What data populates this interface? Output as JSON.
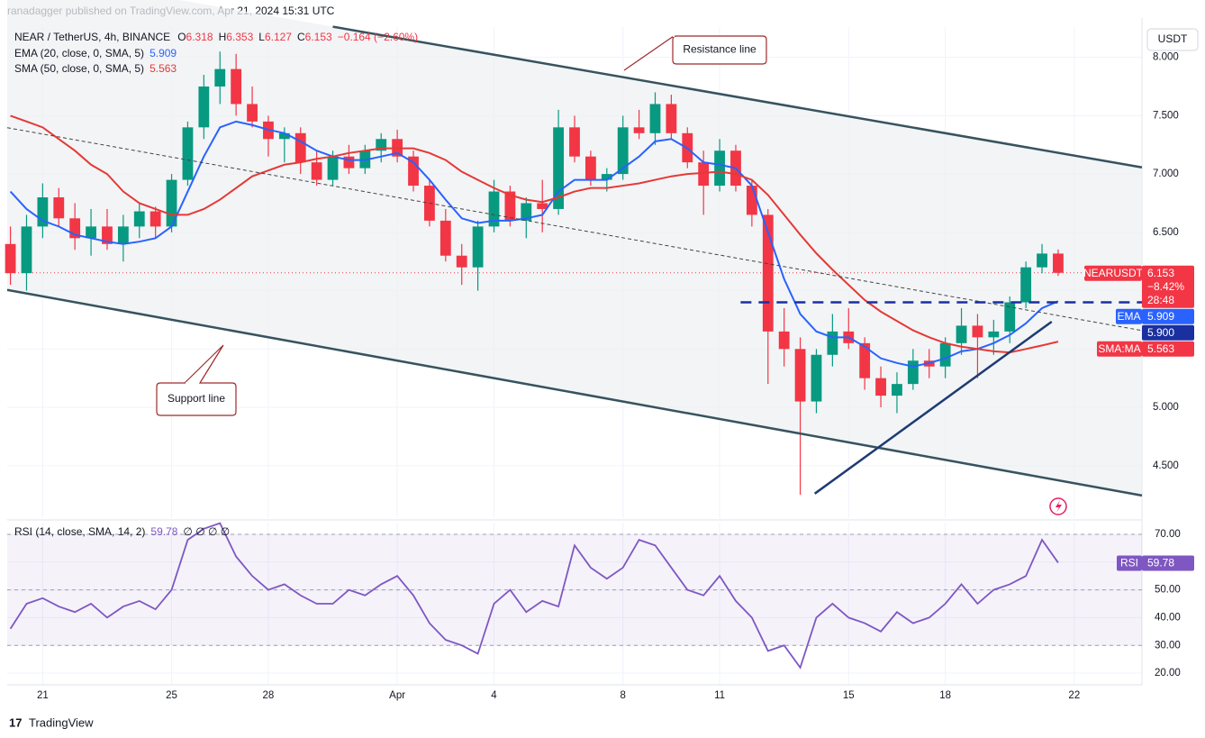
{
  "page": {
    "publisher": "ranadagger published on TradingView.com, Apr 21, 2024 15:31 UTC",
    "footer": "TradingView",
    "currency": "USDT"
  },
  "chart_data": [
    {
      "type": "candlestick",
      "symbol": "NEAR / TetherUS, 4h, BINANCE",
      "ohlc": [
        {
          "label": "O",
          "value": "6.318"
        },
        {
          "label": "H",
          "value": "6.353"
        },
        {
          "label": "L",
          "value": "6.127"
        },
        {
          "label": "C",
          "value": "6.153"
        }
      ],
      "change": "−0.164 (−2.60%)",
      "up_color": "#089981",
      "down_color": "#f23645",
      "open": [
        6.4,
        6.15,
        6.55,
        6.8,
        6.62,
        6.45,
        6.55,
        6.4,
        6.55,
        6.68,
        6.55,
        6.95,
        7.4,
        7.75,
        7.9,
        7.6,
        7.45,
        7.3,
        7.35,
        7.1,
        6.95,
        7.15,
        7.05,
        7.2,
        7.3,
        7.15,
        6.9,
        6.6,
        6.3,
        6.2,
        6.55,
        6.85,
        6.6,
        6.75,
        6.7,
        7.4,
        7.15,
        6.95,
        7.0,
        7.4,
        7.35,
        7.6,
        7.35,
        7.1,
        6.9,
        7.2,
        6.9,
        6.65,
        5.65,
        5.5,
        5.05,
        5.45,
        5.65,
        5.55,
        5.25,
        5.1,
        5.2,
        5.4,
        5.35,
        5.55,
        5.7,
        5.6,
        5.65,
        5.9,
        6.2,
        6.318
      ],
      "high": [
        6.55,
        6.65,
        6.92,
        6.88,
        6.75,
        6.7,
        6.7,
        6.65,
        6.75,
        6.72,
        7.0,
        7.45,
        7.85,
        8.05,
        8.03,
        7.75,
        7.5,
        7.4,
        7.4,
        7.2,
        7.2,
        7.25,
        7.25,
        7.35,
        7.38,
        7.2,
        6.95,
        6.7,
        6.4,
        6.6,
        6.95,
        6.9,
        6.8,
        6.95,
        7.55,
        7.5,
        7.2,
        7.05,
        7.5,
        7.55,
        7.7,
        7.68,
        7.4,
        7.2,
        7.3,
        7.25,
        6.95,
        6.7,
        5.85,
        5.6,
        5.5,
        5.8,
        5.85,
        5.6,
        5.35,
        5.3,
        5.5,
        5.5,
        5.6,
        5.85,
        5.8,
        5.75,
        5.95,
        6.25,
        6.4,
        6.353
      ],
      "low": [
        6.05,
        6.0,
        6.45,
        6.55,
        6.35,
        6.3,
        6.35,
        6.25,
        6.45,
        6.45,
        6.5,
        6.9,
        7.3,
        7.6,
        7.5,
        7.4,
        7.15,
        7.1,
        7.0,
        6.9,
        6.9,
        7.0,
        7.0,
        7.1,
        7.1,
        6.85,
        6.55,
        6.25,
        6.05,
        6.0,
        6.5,
        6.55,
        6.45,
        6.5,
        6.65,
        7.1,
        6.9,
        6.85,
        6.95,
        7.3,
        7.25,
        7.3,
        7.05,
        6.65,
        6.85,
        6.85,
        6.55,
        5.2,
        5.35,
        4.25,
        4.95,
        5.35,
        5.5,
        5.15,
        5.0,
        4.95,
        5.15,
        5.25,
        5.25,
        5.45,
        5.25,
        5.45,
        5.55,
        5.85,
        6.15,
        6.127
      ],
      "close": [
        6.15,
        6.55,
        6.8,
        6.62,
        6.45,
        6.55,
        6.4,
        6.55,
        6.68,
        6.55,
        6.95,
        7.4,
        7.75,
        7.9,
        7.6,
        7.45,
        7.3,
        7.35,
        7.1,
        6.95,
        7.15,
        7.05,
        7.2,
        7.3,
        7.15,
        6.9,
        6.6,
        6.3,
        6.2,
        6.55,
        6.85,
        6.6,
        6.75,
        6.7,
        7.4,
        7.15,
        6.95,
        7.0,
        7.4,
        7.35,
        7.6,
        7.35,
        7.1,
        6.9,
        7.2,
        6.9,
        6.65,
        5.65,
        5.5,
        5.05,
        5.45,
        5.65,
        5.55,
        5.25,
        5.1,
        5.2,
        5.4,
        5.35,
        5.55,
        5.7,
        5.6,
        5.65,
        5.9,
        6.2,
        6.318,
        6.153
      ],
      "series": [
        {
          "name": "EMA (20, close, 0, SMA, 5)",
          "color": "#2962ff",
          "values": [
            6.85,
            6.7,
            6.6,
            6.55,
            6.48,
            6.45,
            6.42,
            6.4,
            6.42,
            6.45,
            6.55,
            6.85,
            7.15,
            7.4,
            7.45,
            7.42,
            7.38,
            7.35,
            7.28,
            7.2,
            7.15,
            7.12,
            7.12,
            7.15,
            7.18,
            7.1,
            6.95,
            6.78,
            6.62,
            6.58,
            6.6,
            6.6,
            6.62,
            6.65,
            6.85,
            6.95,
            6.95,
            6.95,
            7.05,
            7.15,
            7.28,
            7.3,
            7.22,
            7.1,
            7.08,
            7.05,
            6.9,
            6.5,
            6.1,
            5.8,
            5.65,
            5.6,
            5.6,
            5.52,
            5.42,
            5.38,
            5.35,
            5.38,
            5.42,
            5.48,
            5.5,
            5.55,
            5.62,
            5.72,
            5.85,
            5.909
          ]
        },
        {
          "name": "SMA (50, close, 0, SMA, 5)",
          "color": "#e53935",
          "values": [
            7.5,
            7.45,
            7.4,
            7.3,
            7.2,
            7.08,
            7.0,
            6.85,
            6.75,
            6.7,
            6.65,
            6.65,
            6.7,
            6.78,
            6.88,
            6.98,
            7.03,
            7.08,
            7.1,
            7.13,
            7.15,
            7.18,
            7.2,
            7.22,
            7.22,
            7.22,
            7.18,
            7.12,
            7.02,
            6.95,
            6.88,
            6.82,
            6.78,
            6.76,
            6.8,
            6.85,
            6.88,
            6.88,
            6.9,
            6.92,
            6.95,
            6.98,
            7.0,
            7.01,
            7.02,
            7.0,
            6.95,
            6.82,
            6.65,
            6.48,
            6.32,
            6.18,
            6.05,
            5.92,
            5.82,
            5.74,
            5.66,
            5.6,
            5.55,
            5.52,
            5.5,
            5.48,
            5.47,
            5.5,
            5.53,
            5.563
          ]
        }
      ],
      "xlim": [
        -0.2,
        70.2
      ],
      "xticks": [
        {
          "value": 2,
          "label": "21"
        },
        {
          "value": 10,
          "label": "25"
        },
        {
          "value": 16,
          "label": "28"
        },
        {
          "value": 24,
          "label": "Apr"
        },
        {
          "value": 30,
          "label": "4"
        },
        {
          "value": 38,
          "label": "8"
        },
        {
          "value": 44,
          "label": "11"
        },
        {
          "value": 52,
          "label": "15"
        },
        {
          "value": 58,
          "label": "18"
        },
        {
          "value": 66,
          "label": "22"
        }
      ],
      "ylim": [
        4.05,
        8.26
      ],
      "yticks": [
        {
          "value": 4.5,
          "label": "4.500"
        },
        {
          "value": 5,
          "label": "5.000"
        },
        {
          "value": 5.5,
          "label": "5.500"
        },
        {
          "value": 6,
          "label": "6.000"
        },
        {
          "value": 6.5,
          "label": "6.500"
        },
        {
          "value": 7,
          "label": "7.000"
        },
        {
          "value": 7.5,
          "label": "7.500"
        },
        {
          "value": 8,
          "label": "8.000"
        }
      ],
      "grid": true,
      "lines": [
        {
          "x1": 20.0,
          "y1": 8.263,
          "x2": 70.2,
          "y2": 7.057,
          "color": "#37535e",
          "style": "solid"
        },
        {
          "x1": -0.2,
          "y1": 6.006,
          "x2": 70.2,
          "y2": 4.244,
          "color": "#37535e",
          "style": "solid"
        },
        {
          "x1": -0.2,
          "y1": 7.397,
          "x2": 70.2,
          "y2": 5.658,
          "color": "#444444",
          "style": "dashed"
        },
        {
          "x1": 49.9,
          "y1": 4.26,
          "x2": 64.6,
          "y2": 5.734,
          "color": "#1f3b73",
          "style": "solid"
        },
        {
          "x1": 45.3,
          "y1": 5.9,
          "x2": 70.2,
          "y2": 5.9,
          "color": "#1a2fa0",
          "style": "longdash"
        }
      ],
      "price_labels": [
        {
          "name": "NEARUSDT",
          "value": 6.153,
          "change": "−8.42%",
          "countdown": "28:48",
          "color": "#f23645"
        },
        {
          "name": "EMA",
          "value": 5.909,
          "color": "#2962ff"
        },
        {
          "value": {
            "value": 5.9,
            "label": "5.900"
          },
          "color": "#1a2fa0"
        },
        {
          "name": "SMA:MA",
          "value": 5.563,
          "color": "#f23645"
        }
      ],
      "annotations": [
        {
          "text": "Resistance line"
        },
        {
          "text": "Support line"
        }
      ]
    },
    {
      "type": "line",
      "series": [
        {
          "name": "RSI (14, close, SMA, 14, 2)",
          "color": "#7e57c2",
          "values": [
            36,
            45,
            47,
            44,
            42,
            45,
            40,
            44,
            46,
            43,
            50,
            68,
            72,
            74,
            62,
            55,
            50,
            52,
            48,
            45,
            45,
            50,
            48,
            52,
            55,
            48,
            38,
            32,
            30,
            27,
            45,
            50,
            42,
            46,
            44,
            66,
            58,
            54,
            58,
            68,
            66,
            58,
            50,
            48,
            55,
            46,
            40,
            28,
            30,
            22,
            40,
            45,
            40,
            38,
            35,
            42,
            38,
            40,
            45,
            52,
            45,
            50,
            52,
            55,
            68,
            59.78
          ]
        }
      ],
      "extra": "∅ ∅ ∅ ∅",
      "ylim": [
        15.8,
        74.2
      ],
      "yticks": [
        {
          "value": 20,
          "label": "20.00"
        },
        {
          "value": 30,
          "label": "30.00"
        },
        {
          "value": 40,
          "label": "40.00"
        },
        {
          "value": 50,
          "label": "50.00"
        },
        {
          "value": 60,
          "label": "60.00"
        },
        {
          "value": 70,
          "label": "70.00"
        }
      ],
      "levels": [
        30,
        50,
        70
      ],
      "price_label": {
        "name": "RSI",
        "value": 59.78,
        "color": "#7e57c2"
      }
    }
  ]
}
